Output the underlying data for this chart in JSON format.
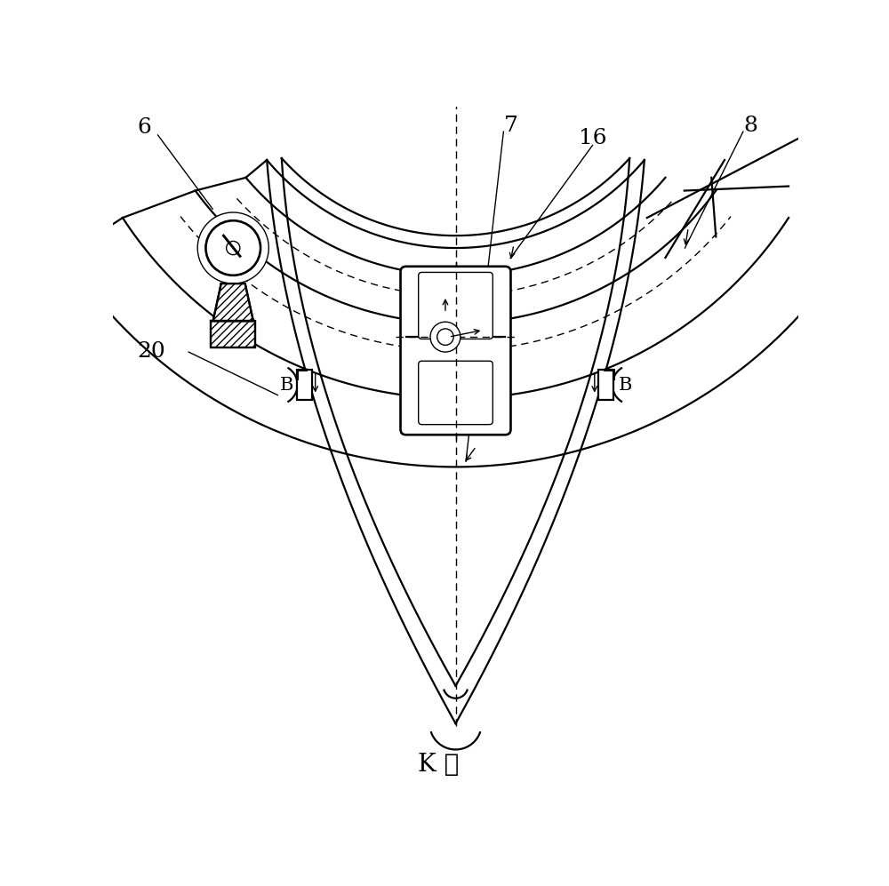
{
  "bg_color": "#ffffff",
  "line_color": "#000000",
  "label_6": "6",
  "label_7": "7",
  "label_8": "8",
  "label_16": "16",
  "label_20": "20",
  "label_B": "B",
  "label_K": "K 向",
  "font_size_labels": 18,
  "font_size_K": 20,
  "lw_main": 1.6,
  "lw_thin": 1.0
}
